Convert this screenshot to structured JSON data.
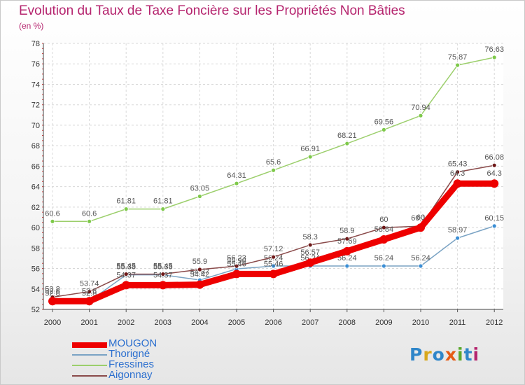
{
  "title": "Evolution du Taux de Taxe Foncière sur les Propriétés Non Bâties",
  "unit": "(en %)",
  "logo": {
    "text": "Proxiti",
    "colors": [
      "#2f86c9",
      "#d8a81c",
      "#2f86c9",
      "#e65a14",
      "#5aa82c",
      "#2f86c9",
      "#b5246e"
    ]
  },
  "chart_data": {
    "type": "line",
    "title": "Evolution du Taux de Taxe Foncière sur les Propriétés Non Bâties",
    "ylabel": "(en %)",
    "xlabel": "",
    "categories": [
      "2000",
      "2001",
      "2002",
      "2003",
      "2004",
      "2005",
      "2006",
      "2007",
      "2008",
      "2009",
      "2010",
      "2011",
      "2012"
    ],
    "yticks": [
      52,
      54,
      56,
      58,
      60,
      62,
      64,
      66,
      68,
      70,
      72,
      74,
      76,
      78
    ],
    "ylim": [
      52,
      78
    ],
    "grid": true,
    "legend": "bottom-left",
    "series": [
      {
        "name": "Fressines",
        "color": "#9ccf6c",
        "marker": "#7ec94a",
        "values": [
          60.6,
          60.6,
          61.81,
          61.81,
          63.05,
          64.31,
          65.6,
          66.91,
          68.21,
          69.56,
          70.94,
          75.87,
          76.63
        ],
        "labels": [
          "60.6",
          "60.6",
          "61.81",
          "61.81",
          "63.05",
          "64.31",
          "65.6",
          "66.91",
          "68.21",
          "69.56",
          "70.94",
          "75.87",
          "76.63"
        ]
      },
      {
        "name": "Thorigné",
        "color": "#7aa3c4",
        "marker": "#3b8ed4",
        "values": [
          52.8,
          52.8,
          55.38,
          55.38,
          54.87,
          55.96,
          56.24,
          56.24,
          56.24,
          56.24,
          56.24,
          58.97,
          60.15
        ],
        "labels": [
          "52.8",
          "52.8",
          "55.38",
          "55.38",
          "54.87",
          "55.96",
          "56.24",
          "56.24",
          "56.24",
          "56.24",
          "56.24",
          "58.97",
          "60.15"
        ]
      },
      {
        "name": "Aigonnay",
        "color": "#8a4a4a",
        "marker": "#6e1818",
        "values": [
          53.2,
          53.74,
          55.45,
          55.45,
          55.9,
          56.23,
          57.12,
          58.3,
          58.9,
          60,
          60.13,
          65.43,
          66.08
        ],
        "labels": [
          "53.2",
          "53.74",
          "55.45",
          "55.45",
          "55.9",
          "56.23",
          "57.12",
          "58.3",
          "58.9",
          "60",
          "60.13",
          "65.43",
          "66.08"
        ]
      },
      {
        "name": "MOUGON",
        "color": "#ee0000",
        "marker": "#ee0000",
        "values": [
          52.8,
          52.8,
          54.37,
          54.37,
          54.42,
          55.46,
          55.46,
          56.57,
          57.69,
          58.84,
          60,
          64.3,
          64.3
        ],
        "labels": [
          "52.8",
          "52.8",
          "54.37",
          "54.37",
          "54.42",
          "55.46",
          "55.46",
          "56.57",
          "57.69",
          "58.84",
          "60",
          "64.3",
          "64.3"
        ]
      }
    ],
    "legend_entries": [
      {
        "name": "MOUGON",
        "color": "#ee0000",
        "label_color": "#2b6fcf"
      },
      {
        "name": "Thorigné",
        "color": "#7aa3c4",
        "label_color": "#2b6fcf"
      },
      {
        "name": "Fressines",
        "color": "#9ccf6c",
        "label_color": "#2b6fcf"
      },
      {
        "name": "Aigonnay",
        "color": "#8a4a4a",
        "label_color": "#2b6fcf"
      }
    ]
  }
}
